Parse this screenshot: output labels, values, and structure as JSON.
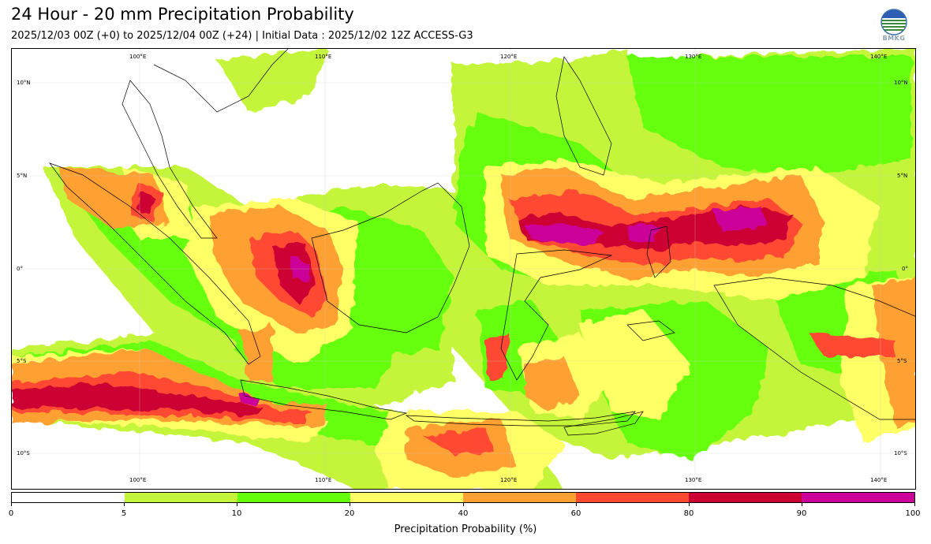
{
  "header": {
    "title": "24 Hour - 20 mm Precipitation Probability",
    "subtitle": "2025/12/03 00Z (+0) to 2025/12/04 00Z (+24) | Initial Data : 2025/12/02 12Z ACCESS-G3",
    "logo_text": "BMKG"
  },
  "map": {
    "lon_labels_top": [
      "100°E",
      "110°E",
      "120°E",
      "130°E",
      "140°E"
    ],
    "lon_labels_bottom": [
      "100°E",
      "110°E",
      "120°E",
      "130°E",
      "140°E"
    ],
    "lat_labels_left": [
      "10°N",
      "5°N",
      "0°",
      "5°S",
      "10°S"
    ],
    "lat_labels_right": [
      "10°N",
      "5°N",
      "0°",
      "5°S",
      "10°S"
    ],
    "extent": {
      "lon_min": 93,
      "lon_max": 141.5,
      "lat_min": -12,
      "lat_max": 11.8
    }
  },
  "colorbar": {
    "title": "Precipitation Probability (%)",
    "levels": [
      "0",
      "5",
      "10",
      "20",
      "40",
      "60",
      "80",
      "90",
      "100"
    ],
    "colors": [
      "#ffffff",
      "#c5f53a",
      "#66ff0a",
      "#ffff66",
      "#ffa033",
      "#ff4a33",
      "#cc0033",
      "#cc0099"
    ]
  }
}
